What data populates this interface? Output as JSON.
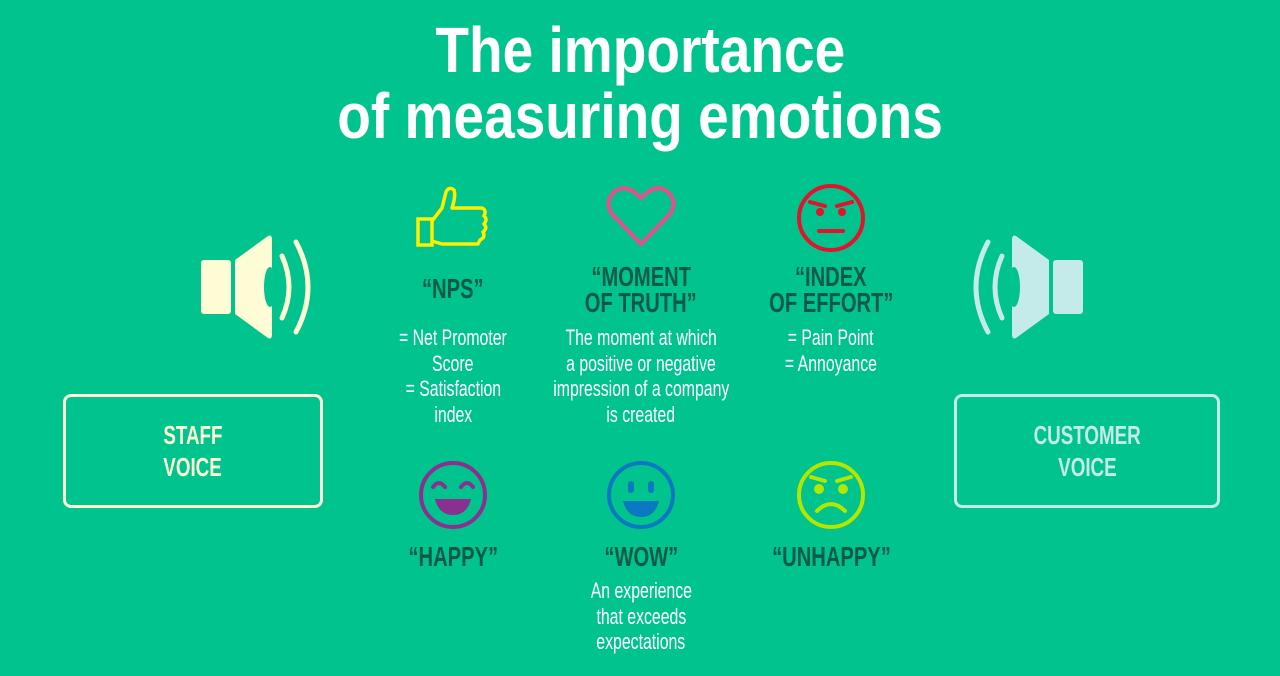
{
  "title": {
    "line1": "The importance",
    "line2": "of measuring emotions"
  },
  "colors": {
    "background": "#00c38d",
    "heading": "#0b5a47",
    "staff": "#fdfcd4",
    "customer": "#c4eaea",
    "nps": "#ffee00",
    "moment": "#e8508a",
    "effort": "#e4122a",
    "happy": "#8b2f90",
    "wow": "#0b78c2",
    "unhappy": "#b4e600"
  },
  "staff": {
    "line1": "STAFF",
    "line2": "VOICE",
    "icon": "speaker-icon"
  },
  "customer": {
    "line1": "CUSTOMER",
    "line2": "VOICE",
    "icon": "speaker-icon"
  },
  "items": [
    {
      "icon": "thumbs-up-icon",
      "heading": [
        "“NPS”"
      ],
      "desc": [
        "= Net Promoter",
        "Score",
        "= Satisfaction",
        "index"
      ]
    },
    {
      "icon": "heart-icon",
      "heading": [
        "“MOMENT",
        "OF TRUTH”"
      ],
      "desc": [
        "The moment at which",
        "a positive or negative",
        "impression of a company",
        "is created"
      ]
    },
    {
      "icon": "annoyed-face-icon",
      "heading": [
        "“INDEX",
        "OF EFFORT”"
      ],
      "desc": [
        "= Pain Point",
        "= Annoyance"
      ]
    },
    {
      "icon": "happy-face-icon",
      "heading": [
        "“HAPPY”"
      ],
      "desc": []
    },
    {
      "icon": "wow-face-icon",
      "heading": [
        "“WOW”"
      ],
      "desc": [
        "An experience",
        "that exceeds",
        "expectations"
      ]
    },
    {
      "icon": "unhappy-face-icon",
      "heading": [
        "“UNHAPPY”"
      ],
      "desc": []
    }
  ]
}
